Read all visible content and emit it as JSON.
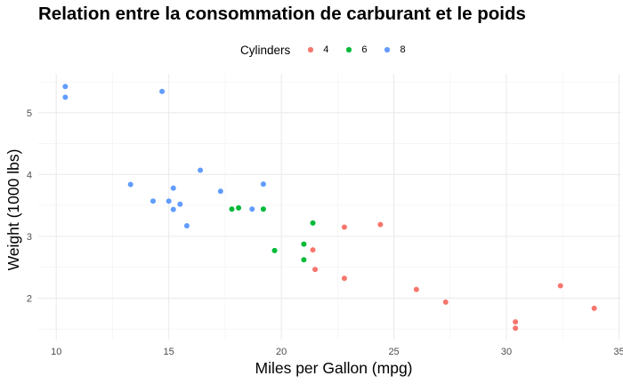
{
  "chart_data": {
    "type": "scatter",
    "title": "Relation entre la consommation de carburant et le poids",
    "xlabel": "Miles per Gallon (mpg)",
    "ylabel": "Weight (1000 lbs)",
    "xlim": [
      9.2,
      35.1
    ],
    "ylim": [
      1.33,
      5.63
    ],
    "x_ticks": [
      10,
      15,
      20,
      25,
      30,
      35
    ],
    "y_ticks": [
      2,
      3,
      4,
      5
    ],
    "grid": true,
    "legend_position": "top",
    "legend": {
      "title": "Cylinders",
      "entries": [
        {
          "label": "4",
          "color": "#F8766D"
        },
        {
          "label": "6",
          "color": "#00BA38"
        },
        {
          "label": "8",
          "color": "#619CFF"
        }
      ]
    },
    "series": [
      {
        "name": "4",
        "color": "#F8766D",
        "points": [
          [
            22.8,
            2.32
          ],
          [
            24.4,
            3.19
          ],
          [
            22.8,
            3.15
          ],
          [
            32.4,
            2.2
          ],
          [
            30.4,
            1.615
          ],
          [
            33.9,
            1.835
          ],
          [
            21.5,
            2.465
          ],
          [
            27.3,
            1.935
          ],
          [
            26.0,
            2.14
          ],
          [
            30.4,
            1.513
          ],
          [
            21.4,
            2.78
          ]
        ]
      },
      {
        "name": "6",
        "color": "#00BA38",
        "points": [
          [
            21.0,
            2.62
          ],
          [
            21.0,
            2.875
          ],
          [
            21.4,
            3.215
          ],
          [
            18.1,
            3.46
          ],
          [
            19.2,
            3.44
          ],
          [
            17.8,
            3.44
          ],
          [
            19.7,
            2.77
          ]
        ]
      },
      {
        "name": "8",
        "color": "#619CFF",
        "points": [
          [
            18.7,
            3.44
          ],
          [
            14.3,
            3.57
          ],
          [
            16.4,
            4.07
          ],
          [
            17.3,
            3.73
          ],
          [
            15.2,
            3.78
          ],
          [
            10.4,
            5.25
          ],
          [
            10.4,
            5.424
          ],
          [
            14.7,
            5.345
          ],
          [
            15.5,
            3.52
          ],
          [
            15.2,
            3.435
          ],
          [
            13.3,
            3.84
          ],
          [
            19.2,
            3.845
          ],
          [
            15.8,
            3.17
          ],
          [
            15.0,
            3.57
          ]
        ]
      }
    ]
  }
}
